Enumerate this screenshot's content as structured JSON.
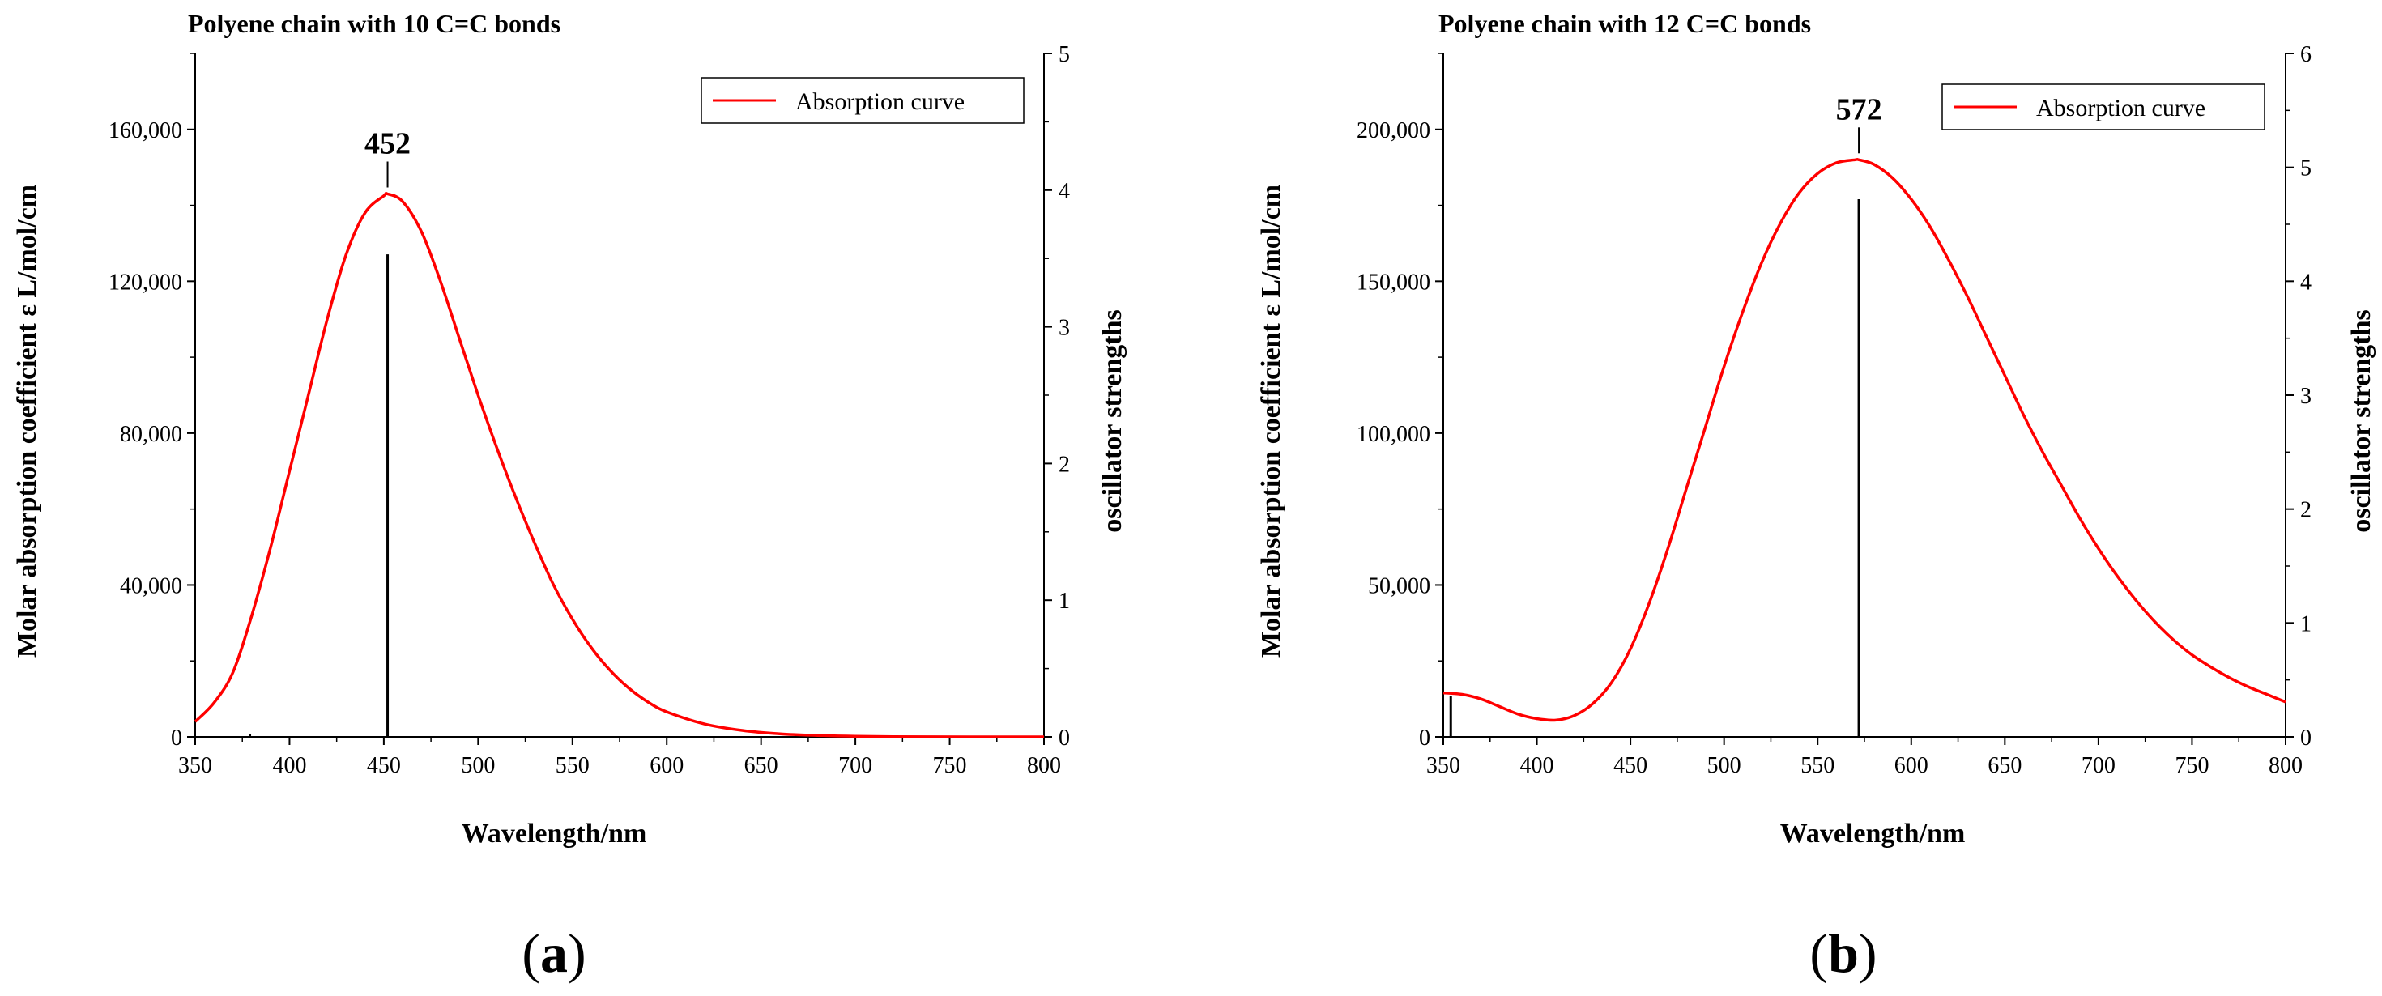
{
  "chart_data": [
    {
      "type": "line",
      "panel_label_open": "(",
      "panel_letter": "a",
      "panel_label_close": ")",
      "title": "Polyene chain with 10 C=C bonds",
      "xlabel": "Wavelength/nm",
      "ylabel": "Molar absorption coefficient ε  L/mol/cm",
      "y2label": "oscillator strengths",
      "xlim": [
        350,
        800
      ],
      "ylim": [
        0,
        180000
      ],
      "y2lim": [
        0,
        5
      ],
      "xticks": [
        350,
        400,
        450,
        500,
        550,
        600,
        650,
        700,
        750,
        800
      ],
      "xtick_labels": [
        "350",
        "400",
        "450",
        "500",
        "550",
        "600",
        "650",
        "700",
        "750",
        "800"
      ],
      "yticks": [
        0,
        40000,
        80000,
        120000,
        160000
      ],
      "ytick_labels": [
        "0",
        "40,000",
        "80,000",
        "120,000",
        "160,000"
      ],
      "y2ticks": [
        0,
        1,
        2,
        3,
        4,
        5
      ],
      "y2tick_labels": [
        "0",
        "1",
        "2",
        "3",
        "4",
        "5"
      ],
      "legend": "Absorption curve",
      "legend_position": "top-right",
      "peak_label": "452",
      "peak_x": 452,
      "peak_y": 143000,
      "curve_color": "#ff0000",
      "stick_color": "#000000",
      "series": [
        {
          "name": "Absorption curve",
          "x": [
            350,
            360,
            370,
            380,
            390,
            400,
            410,
            420,
            430,
            440,
            450,
            452,
            460,
            470,
            480,
            490,
            500,
            510,
            520,
            530,
            540,
            550,
            560,
            570,
            580,
            590,
            600,
            620,
            640,
            660,
            680,
            700,
            720,
            740,
            760,
            780,
            800
          ],
          "y": [
            4000,
            9000,
            17000,
            32000,
            50000,
            70000,
            90000,
            110000,
            127000,
            138000,
            142500,
            143000,
            141000,
            133000,
            120000,
            105000,
            90000,
            76000,
            63000,
            51000,
            40000,
            31000,
            23500,
            17500,
            12800,
            9200,
            6600,
            3400,
            1700,
            800,
            380,
            170,
            70,
            30,
            10,
            5,
            0
          ]
        }
      ],
      "sticks": [
        {
          "x": 379,
          "f": 0.02
        },
        {
          "x": 452,
          "f": 3.53
        }
      ]
    },
    {
      "type": "line",
      "panel_label_open": "(",
      "panel_letter": "b",
      "panel_label_close": ")",
      "title": "Polyene chain with 12 C=C bonds",
      "xlabel": "Wavelength/nm",
      "ylabel": "Molar absorption coefficient ε  L/mol/cm",
      "y2label": "oscillator strengths",
      "xlim": [
        350,
        800
      ],
      "ylim": [
        0,
        225000
      ],
      "y2lim": [
        0,
        6
      ],
      "xticks": [
        350,
        400,
        450,
        500,
        550,
        600,
        650,
        700,
        750,
        800
      ],
      "xtick_labels": [
        "350",
        "400",
        "450",
        "500",
        "550",
        "600",
        "650",
        "700",
        "750",
        "800"
      ],
      "yticks": [
        0,
        50000,
        100000,
        150000,
        200000
      ],
      "ytick_labels": [
        "0",
        "50,000",
        "100,000",
        "150,000",
        "200,000"
      ],
      "y2ticks": [
        0,
        1,
        2,
        3,
        4,
        5,
        6
      ],
      "y2tick_labels": [
        "0",
        "1",
        "2",
        "3",
        "4",
        "5",
        "6"
      ],
      "legend": "Absorption curve",
      "legend_position": "top-right",
      "peak_label": "572",
      "peak_x": 572,
      "peak_y": 190000,
      "curve_color": "#ff0000",
      "stick_color": "#000000",
      "series": [
        {
          "name": "Absorption curve",
          "x": [
            350,
            360,
            370,
            380,
            390,
            400,
            410,
            420,
            430,
            440,
            450,
            460,
            470,
            480,
            490,
            500,
            510,
            520,
            530,
            540,
            550,
            560,
            570,
            572,
            580,
            590,
            600,
            610,
            620,
            630,
            640,
            650,
            660,
            670,
            680,
            690,
            700,
            710,
            720,
            730,
            740,
            750,
            760,
            770,
            780,
            790,
            800
          ],
          "y": [
            14500,
            14000,
            12500,
            10000,
            7500,
            6000,
            5500,
            7000,
            11000,
            18000,
            29000,
            44000,
            62000,
            82000,
            102000,
            122000,
            140000,
            156000,
            169000,
            179000,
            185500,
            189000,
            190000,
            190000,
            188500,
            184000,
            177000,
            168000,
            157000,
            145000,
            132000,
            119000,
            106000,
            94000,
            83000,
            72000,
            62000,
            53000,
            45000,
            38000,
            32000,
            27000,
            23000,
            19500,
            16500,
            14000,
            11500
          ]
        }
      ],
      "sticks": [
        {
          "x": 354,
          "f": 0.36
        },
        {
          "x": 572,
          "f": 4.72
        }
      ]
    }
  ]
}
